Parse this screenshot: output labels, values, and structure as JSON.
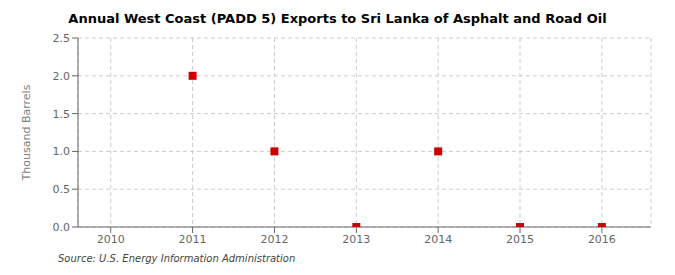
{
  "chart_data": {
    "type": "scatter",
    "title": "Annual West Coast (PADD 5) Exports to Sri Lanka of Asphalt and Road Oil",
    "ylabel": "Thousand Barrels",
    "source": "Source: U.S. Energy Information Administration",
    "x": [
      2011,
      2012,
      2013,
      2014,
      2015,
      2016
    ],
    "values": [
      2.0,
      1.0,
      0.0,
      1.0,
      0.0,
      0.0
    ],
    "color": "#cc0000",
    "marker": "square",
    "xlim": [
      2009.6,
      2016.6
    ],
    "xticks": [
      2010,
      2011,
      2012,
      2013,
      2014,
      2015,
      2016
    ],
    "ylim": [
      0,
      2.5
    ],
    "yticks": [
      {
        "value": 0,
        "label": "0.0"
      },
      0.5,
      {
        "value": 1,
        "label": "1.0"
      },
      1.5,
      {
        "value": 2,
        "label": "2.0"
      },
      2.5
    ],
    "grid": true
  }
}
